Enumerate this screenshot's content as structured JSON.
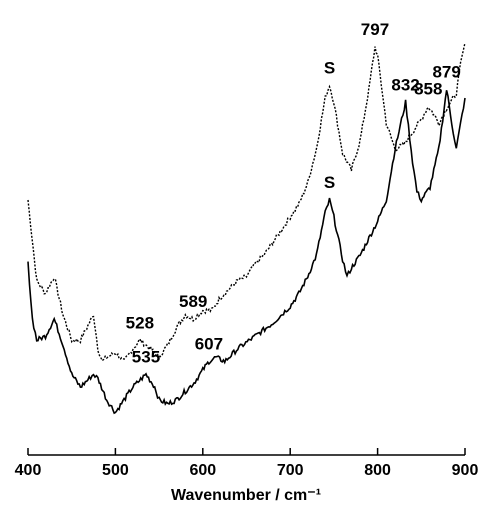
{
  "chart_data": {
    "type": "line",
    "title": "",
    "xlabel": "Wavenumber / cm⁻¹",
    "ylabel": "",
    "xlim": [
      400,
      900
    ],
    "ylim": [
      0,
      1
    ],
    "xticks": [
      400,
      500,
      600,
      700,
      800,
      900
    ],
    "grid": false,
    "legend": "none",
    "series": [
      {
        "style": "dotted",
        "color": "#000000",
        "x": [
          400,
          410,
          420,
          430,
          440,
          450,
          460,
          470,
          475,
          480,
          485,
          490,
          500,
          510,
          520,
          528,
          540,
          550,
          560,
          570,
          580,
          589,
          600,
          610,
          620,
          630,
          640,
          650,
          660,
          670,
          680,
          690,
          700,
          710,
          720,
          730,
          740,
          745,
          750,
          760,
          770,
          780,
          790,
          797,
          800,
          810,
          820,
          830,
          840,
          850,
          858,
          865,
          870,
          880,
          890,
          895,
          900
        ],
        "y": [
          0.6,
          0.41,
          0.38,
          0.42,
          0.33,
          0.27,
          0.27,
          0.31,
          0.33,
          0.25,
          0.22,
          0.23,
          0.24,
          0.22,
          0.25,
          0.27,
          0.25,
          0.23,
          0.26,
          0.3,
          0.33,
          0.32,
          0.34,
          0.34,
          0.37,
          0.39,
          0.41,
          0.42,
          0.45,
          0.47,
          0.5,
          0.53,
          0.56,
          0.59,
          0.64,
          0.72,
          0.84,
          0.87,
          0.83,
          0.71,
          0.67,
          0.74,
          0.86,
          0.96,
          0.94,
          0.78,
          0.72,
          0.73,
          0.76,
          0.79,
          0.82,
          0.8,
          0.78,
          0.82,
          0.85,
          0.92,
          0.97
        ]
      },
      {
        "style": "solid",
        "color": "#000000",
        "x": [
          400,
          405,
          410,
          420,
          430,
          440,
          450,
          460,
          470,
          475,
          480,
          490,
          500,
          510,
          520,
          535,
          545,
          550,
          560,
          570,
          580,
          590,
          600,
          607,
          615,
          625,
          640,
          660,
          680,
          700,
          710,
          720,
          730,
          740,
          745,
          750,
          760,
          765,
          770,
          780,
          790,
          800,
          810,
          820,
          832,
          840,
          845,
          850,
          860,
          870,
          879,
          885,
          890,
          895,
          900
        ],
        "y": [
          0.45,
          0.32,
          0.27,
          0.28,
          0.32,
          0.26,
          0.19,
          0.16,
          0.18,
          0.19,
          0.18,
          0.13,
          0.1,
          0.13,
          0.16,
          0.19,
          0.16,
          0.13,
          0.12,
          0.13,
          0.15,
          0.17,
          0.2,
          0.22,
          0.23,
          0.22,
          0.25,
          0.28,
          0.31,
          0.35,
          0.38,
          0.42,
          0.47,
          0.57,
          0.6,
          0.56,
          0.46,
          0.42,
          0.44,
          0.47,
          0.51,
          0.55,
          0.6,
          0.72,
          0.83,
          0.69,
          0.62,
          0.6,
          0.63,
          0.72,
          0.86,
          0.78,
          0.72,
          0.78,
          0.84
        ]
      }
    ],
    "annotations": [
      {
        "text": "797",
        "x": 797,
        "y": 0.96,
        "series": 0
      },
      {
        "text": "858",
        "x": 858,
        "y": 0.82,
        "series": 0
      },
      {
        "text": "S",
        "x": 745,
        "y": 0.87,
        "series": 0
      },
      {
        "text": "528",
        "x": 528,
        "y": 0.27,
        "series": 0
      },
      {
        "text": "589",
        "x": 589,
        "y": 0.32,
        "series": 0
      },
      {
        "text": "832",
        "x": 832,
        "y": 0.83,
        "series": 1
      },
      {
        "text": "879",
        "x": 879,
        "y": 0.86,
        "series": 1
      },
      {
        "text": "S",
        "x": 745,
        "y": 0.6,
        "series": 1
      },
      {
        "text": "535",
        "x": 535,
        "y": 0.19,
        "series": 1
      },
      {
        "text": "607",
        "x": 607,
        "y": 0.22,
        "series": 1
      }
    ]
  }
}
